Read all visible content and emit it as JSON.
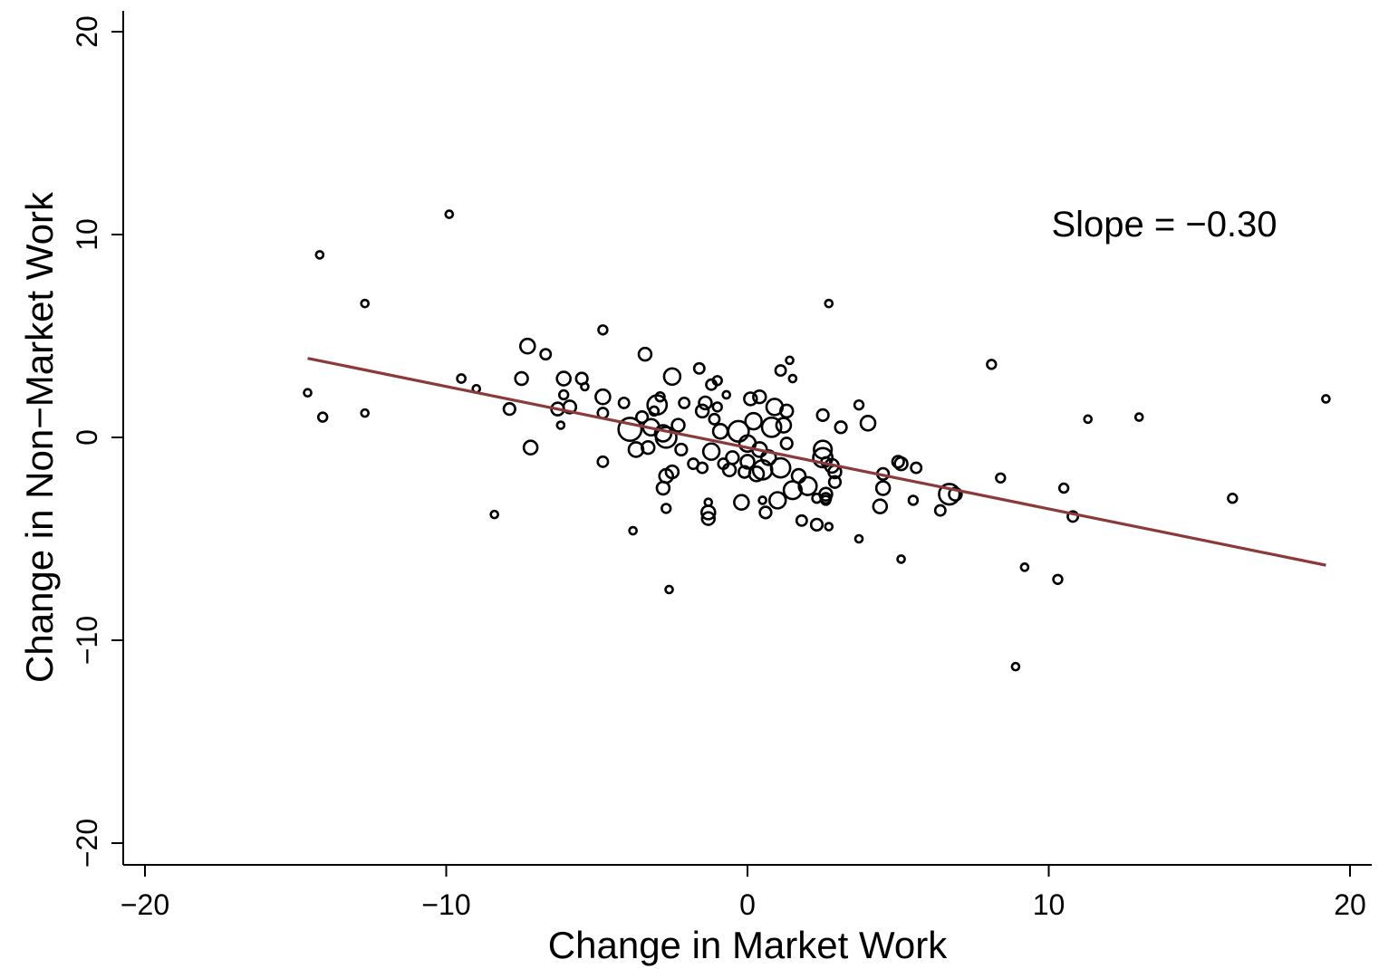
{
  "chart_data": {
    "type": "scatter",
    "title": "",
    "xlabel": "Change in Market Work",
    "ylabel": "Change in Non−Market Work",
    "xlim": [
      -21,
      20.5
    ],
    "ylim": [
      -21.2,
      21.1
    ],
    "xticks": [
      -20,
      -10,
      0,
      10,
      20
    ],
    "yticks": [
      -20,
      -10,
      0,
      10,
      20
    ],
    "xtick_labels": [
      "−20",
      "−10",
      "0",
      "10",
      "20"
    ],
    "ytick_labels": [
      "−20",
      "−10",
      "0",
      "10",
      "20"
    ],
    "grid": false,
    "legend": "none",
    "marker": "hollow-circle",
    "marker_color": "#000000",
    "fit_line": {
      "x": [
        -14.6,
        19.2
      ],
      "y": [
        3.9,
        -6.3
      ],
      "color": "#8b3a3a"
    },
    "annotation": "Slope = −0.30",
    "points": [
      {
        "x": -14.6,
        "y": 2.2,
        "w": 1
      },
      {
        "x": -14.2,
        "y": 9.0,
        "w": 1
      },
      {
        "x": -14.1,
        "y": 1.0,
        "w": 1.5
      },
      {
        "x": -12.7,
        "y": 6.6,
        "w": 1
      },
      {
        "x": -12.7,
        "y": 1.2,
        "w": 1
      },
      {
        "x": -9.9,
        "y": 11.0,
        "w": 1
      },
      {
        "x": -9.5,
        "y": 2.9,
        "w": 1.3
      },
      {
        "x": -9.0,
        "y": 2.4,
        "w": 1
      },
      {
        "x": -8.4,
        "y": -3.8,
        "w": 1
      },
      {
        "x": -7.9,
        "y": 1.4,
        "w": 2.5
      },
      {
        "x": -7.5,
        "y": 2.9,
        "w": 3
      },
      {
        "x": -7.3,
        "y": 4.5,
        "w": 4
      },
      {
        "x": -7.2,
        "y": -0.5,
        "w": 3.5
      },
      {
        "x": -6.7,
        "y": 4.1,
        "w": 2
      },
      {
        "x": -6.3,
        "y": 1.4,
        "w": 3
      },
      {
        "x": -6.2,
        "y": 0.6,
        "w": 1
      },
      {
        "x": -6.1,
        "y": 2.1,
        "w": 1.5
      },
      {
        "x": -6.1,
        "y": 2.9,
        "w": 3.5
      },
      {
        "x": -5.9,
        "y": 1.5,
        "w": 3
      },
      {
        "x": -5.5,
        "y": 2.9,
        "w": 2.5
      },
      {
        "x": -5.4,
        "y": 2.5,
        "w": 1
      },
      {
        "x": -4.8,
        "y": 5.3,
        "w": 1.5
      },
      {
        "x": -4.8,
        "y": 2.0,
        "w": 4
      },
      {
        "x": -4.8,
        "y": 1.2,
        "w": 2
      },
      {
        "x": -4.8,
        "y": -1.2,
        "w": 2
      },
      {
        "x": -4.1,
        "y": 1.7,
        "w": 2
      },
      {
        "x": -3.9,
        "y": 0.4,
        "w": 10
      },
      {
        "x": -3.8,
        "y": -4.6,
        "w": 1
      },
      {
        "x": -3.7,
        "y": -0.6,
        "w": 4
      },
      {
        "x": -3.5,
        "y": 1.0,
        "w": 2.5
      },
      {
        "x": -3.4,
        "y": 4.1,
        "w": 3
      },
      {
        "x": -3.3,
        "y": -0.5,
        "w": 3
      },
      {
        "x": -3.2,
        "y": 0.5,
        "w": 5
      },
      {
        "x": -3.1,
        "y": 1.3,
        "w": 1.5
      },
      {
        "x": -3.0,
        "y": 1.6,
        "w": 7
      },
      {
        "x": -2.9,
        "y": 2.0,
        "w": 1.5
      },
      {
        "x": -2.8,
        "y": 0.2,
        "w": 5
      },
      {
        "x": -2.7,
        "y": 0.0,
        "w": 8
      },
      {
        "x": -2.7,
        "y": -1.9,
        "w": 3.5
      },
      {
        "x": -2.8,
        "y": -2.5,
        "w": 3
      },
      {
        "x": -2.7,
        "y": -3.5,
        "w": 1.5
      },
      {
        "x": -2.6,
        "y": -7.5,
        "w": 1
      },
      {
        "x": -2.5,
        "y": -1.7,
        "w": 3
      },
      {
        "x": -2.5,
        "y": 3.0,
        "w": 5
      },
      {
        "x": -2.3,
        "y": 0.6,
        "w": 3
      },
      {
        "x": -2.2,
        "y": -0.6,
        "w": 2.5
      },
      {
        "x": -2.1,
        "y": 1.7,
        "w": 2
      },
      {
        "x": -1.8,
        "y": -1.3,
        "w": 2
      },
      {
        "x": -1.6,
        "y": 3.4,
        "w": 2
      },
      {
        "x": -1.5,
        "y": 1.3,
        "w": 3
      },
      {
        "x": -1.5,
        "y": -1.5,
        "w": 2
      },
      {
        "x": -1.4,
        "y": 1.7,
        "w": 3
      },
      {
        "x": -1.3,
        "y": -3.2,
        "w": 1
      },
      {
        "x": -1.3,
        "y": -3.7,
        "w": 3.5
      },
      {
        "x": -1.2,
        "y": 2.6,
        "w": 2
      },
      {
        "x": -1.3,
        "y": -4.0,
        "w": 3
      },
      {
        "x": -1.2,
        "y": -0.7,
        "w": 5
      },
      {
        "x": -1.1,
        "y": 0.9,
        "w": 2
      },
      {
        "x": -1.0,
        "y": 1.5,
        "w": 1.5
      },
      {
        "x": -1.0,
        "y": 2.8,
        "w": 1.5
      },
      {
        "x": -0.9,
        "y": 0.3,
        "w": 4
      },
      {
        "x": -0.8,
        "y": -1.3,
        "w": 2
      },
      {
        "x": -0.7,
        "y": 2.1,
        "w": 1
      },
      {
        "x": -0.6,
        "y": -1.6,
        "w": 3
      },
      {
        "x": -0.5,
        "y": -1.0,
        "w": 3
      },
      {
        "x": -0.3,
        "y": 0.3,
        "w": 8
      },
      {
        "x": -0.2,
        "y": -3.2,
        "w": 4
      },
      {
        "x": -0.1,
        "y": -1.7,
        "w": 2.5
      },
      {
        "x": 0.0,
        "y": -0.3,
        "w": 5
      },
      {
        "x": 0.0,
        "y": -1.2,
        "w": 3.5
      },
      {
        "x": 0.1,
        "y": 1.9,
        "w": 3
      },
      {
        "x": 0.2,
        "y": 0.8,
        "w": 5
      },
      {
        "x": 0.3,
        "y": -1.8,
        "w": 4
      },
      {
        "x": 0.4,
        "y": 2.0,
        "w": 3
      },
      {
        "x": 0.4,
        "y": -0.6,
        "w": 4
      },
      {
        "x": 0.5,
        "y": -1.6,
        "w": 7
      },
      {
        "x": 0.5,
        "y": -3.1,
        "w": 1
      },
      {
        "x": 0.6,
        "y": -3.7,
        "w": 2.5
      },
      {
        "x": 0.7,
        "y": -1.0,
        "w": 4
      },
      {
        "x": 0.8,
        "y": 0.5,
        "w": 7
      },
      {
        "x": 0.9,
        "y": 1.5,
        "w": 5
      },
      {
        "x": 1.0,
        "y": -3.1,
        "w": 5
      },
      {
        "x": 1.1,
        "y": 3.3,
        "w": 2
      },
      {
        "x": 1.1,
        "y": -1.5,
        "w": 7
      },
      {
        "x": 1.2,
        "y": 0.6,
        "w": 4
      },
      {
        "x": 1.3,
        "y": 1.3,
        "w": 3
      },
      {
        "x": 1.3,
        "y": -0.3,
        "w": 2.5
      },
      {
        "x": 1.4,
        "y": 3.8,
        "w": 1
      },
      {
        "x": 1.5,
        "y": -2.6,
        "w": 6
      },
      {
        "x": 1.5,
        "y": 2.9,
        "w": 1
      },
      {
        "x": 1.7,
        "y": -1.9,
        "w": 3.5
      },
      {
        "x": 1.8,
        "y": -4.1,
        "w": 2
      },
      {
        "x": 2.0,
        "y": -2.4,
        "w": 6
      },
      {
        "x": 2.3,
        "y": -4.3,
        "w": 2.5
      },
      {
        "x": 2.3,
        "y": -3.0,
        "w": 1.5
      },
      {
        "x": 2.5,
        "y": 1.1,
        "w": 2.5
      },
      {
        "x": 2.5,
        "y": -0.6,
        "w": 6
      },
      {
        "x": 2.5,
        "y": -1.0,
        "w": 7
      },
      {
        "x": 2.6,
        "y": -1.2,
        "w": 1.5
      },
      {
        "x": 2.6,
        "y": -2.8,
        "w": 3
      },
      {
        "x": 2.6,
        "y": -3.0,
        "w": 2
      },
      {
        "x": 2.6,
        "y": -3.1,
        "w": 1.5
      },
      {
        "x": 2.7,
        "y": 6.6,
        "w": 1
      },
      {
        "x": 2.7,
        "y": -4.4,
        "w": 1
      },
      {
        "x": 2.8,
        "y": -1.4,
        "w": 3.5
      },
      {
        "x": 2.9,
        "y": -1.7,
        "w": 3
      },
      {
        "x": 2.9,
        "y": -2.2,
        "w": 2.5
      },
      {
        "x": 3.1,
        "y": 0.5,
        "w": 2.5
      },
      {
        "x": 3.7,
        "y": 1.6,
        "w": 1.5
      },
      {
        "x": 3.7,
        "y": -5.0,
        "w": 1
      },
      {
        "x": 4.0,
        "y": 0.7,
        "w": 4
      },
      {
        "x": 4.4,
        "y": -3.4,
        "w": 3.5
      },
      {
        "x": 4.5,
        "y": -2.5,
        "w": 3.5
      },
      {
        "x": 4.5,
        "y": -1.8,
        "w": 2.5
      },
      {
        "x": 5.0,
        "y": -1.2,
        "w": 2.5
      },
      {
        "x": 5.1,
        "y": -1.3,
        "w": 3
      },
      {
        "x": 5.1,
        "y": -6.0,
        "w": 1
      },
      {
        "x": 5.5,
        "y": -3.1,
        "w": 1.5
      },
      {
        "x": 5.6,
        "y": -1.5,
        "w": 2
      },
      {
        "x": 6.4,
        "y": -3.6,
        "w": 2
      },
      {
        "x": 6.7,
        "y": -2.8,
        "w": 8
      },
      {
        "x": 6.9,
        "y": -2.8,
        "w": 3
      },
      {
        "x": 8.1,
        "y": 3.6,
        "w": 1.5
      },
      {
        "x": 8.4,
        "y": -2.0,
        "w": 1.5
      },
      {
        "x": 8.9,
        "y": -11.3,
        "w": 1
      },
      {
        "x": 9.2,
        "y": -6.4,
        "w": 1
      },
      {
        "x": 10.3,
        "y": -7.0,
        "w": 1.5
      },
      {
        "x": 10.5,
        "y": -2.5,
        "w": 1.5
      },
      {
        "x": 10.8,
        "y": -3.9,
        "w": 2
      },
      {
        "x": 11.3,
        "y": 0.9,
        "w": 1
      },
      {
        "x": 13.0,
        "y": 1.0,
        "w": 1
      },
      {
        "x": 16.1,
        "y": -3.0,
        "w": 1.5
      },
      {
        "x": 19.2,
        "y": 1.9,
        "w": 1
      }
    ]
  }
}
